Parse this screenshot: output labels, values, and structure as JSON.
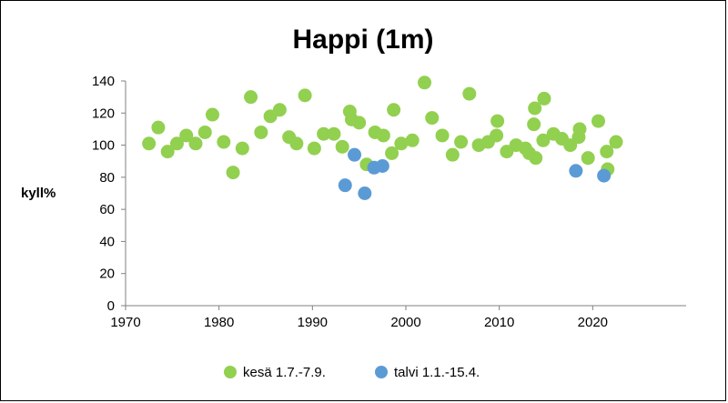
{
  "chart_data": {
    "type": "scatter",
    "title": "Happi (1m)",
    "xlabel": "",
    "ylabel": "kyll%",
    "xlim": [
      1970,
      2030
    ],
    "ylim": [
      0,
      140
    ],
    "xticks": [
      1970,
      1980,
      1990,
      2000,
      2010,
      2020
    ],
    "yticks": [
      0,
      20,
      40,
      60,
      80,
      100,
      120,
      140
    ],
    "grid": false,
    "legend_position": "bottom",
    "series": [
      {
        "name": "kesä 1.7.-7.9.",
        "color": "#92d050",
        "points": [
          [
            1972.5,
            101
          ],
          [
            1973.5,
            111
          ],
          [
            1974.5,
            96
          ],
          [
            1975.5,
            101
          ],
          [
            1976.5,
            106
          ],
          [
            1977.5,
            101
          ],
          [
            1978.5,
            108
          ],
          [
            1979.3,
            119
          ],
          [
            1980.5,
            102
          ],
          [
            1981.5,
            83
          ],
          [
            1982.5,
            98
          ],
          [
            1983.4,
            130
          ],
          [
            1984.5,
            108
          ],
          [
            1985.5,
            118
          ],
          [
            1986.5,
            122
          ],
          [
            1987.5,
            105
          ],
          [
            1988.3,
            101
          ],
          [
            1989.2,
            131
          ],
          [
            1990.2,
            98
          ],
          [
            1991.2,
            107
          ],
          [
            1992.3,
            107
          ],
          [
            1993.2,
            99
          ],
          [
            1994.0,
            121
          ],
          [
            1994.2,
            116
          ],
          [
            1995.0,
            114
          ],
          [
            1995.8,
            88
          ],
          [
            1996.7,
            108
          ],
          [
            1997.6,
            106
          ],
          [
            1998.5,
            95
          ],
          [
            1998.7,
            122
          ],
          [
            1999.5,
            101
          ],
          [
            2000.7,
            103
          ],
          [
            2002.0,
            139
          ],
          [
            2002.8,
            117
          ],
          [
            2003.9,
            106
          ],
          [
            2005.0,
            94
          ],
          [
            2005.9,
            102
          ],
          [
            2006.8,
            132
          ],
          [
            2007.8,
            100
          ],
          [
            2008.8,
            102
          ],
          [
            2009.7,
            106
          ],
          [
            2009.8,
            115
          ],
          [
            2010.8,
            96
          ],
          [
            2011.8,
            100
          ],
          [
            2012.8,
            98
          ],
          [
            2013.2,
            95
          ],
          [
            2013.7,
            113
          ],
          [
            2013.8,
            123
          ],
          [
            2013.9,
            92
          ],
          [
            2014.7,
            103
          ],
          [
            2014.8,
            129
          ],
          [
            2015.8,
            107
          ],
          [
            2016.7,
            104
          ],
          [
            2017.6,
            100
          ],
          [
            2018.5,
            105
          ],
          [
            2018.6,
            110
          ],
          [
            2019.5,
            92
          ],
          [
            2020.6,
            115
          ],
          [
            2021.5,
            96
          ],
          [
            2021.6,
            85
          ],
          [
            2022.5,
            102
          ]
        ]
      },
      {
        "name": "talvi 1.1.-15.4.",
        "color": "#5b9bd5",
        "points": [
          [
            1993.5,
            75
          ],
          [
            1994.5,
            94
          ],
          [
            1995.6,
            70
          ],
          [
            1996.6,
            86
          ],
          [
            1997.5,
            87
          ],
          [
            2018.2,
            84
          ],
          [
            2021.2,
            81
          ]
        ]
      }
    ]
  }
}
